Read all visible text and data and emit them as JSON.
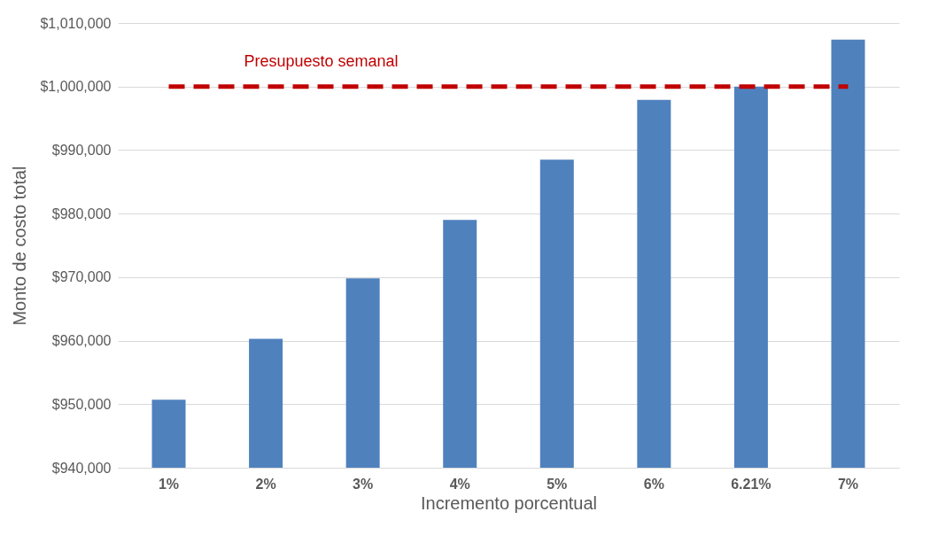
{
  "chart_data": {
    "type": "bar",
    "xlabel": "Incremento porcentual",
    "ylabel": "Monto de costo total",
    "categories": [
      "1%",
      "2%",
      "3%",
      "4%",
      "5%",
      "6%",
      "6.21%",
      "7%"
    ],
    "values": [
      950700,
      960300,
      969800,
      979000,
      988500,
      997900,
      1000000,
      1007400
    ],
    "color": "#4f81bd",
    "ylim": [
      940000,
      1010000
    ],
    "yticks": [
      {
        "value": 940000,
        "label": "$940,000"
      },
      {
        "value": 950000,
        "label": "$950,000"
      },
      {
        "value": 960000,
        "label": "$960,000"
      },
      {
        "value": 970000,
        "label": "$970,000"
      },
      {
        "value": 980000,
        "label": "$980,000"
      },
      {
        "value": 990000,
        "label": "$990,000"
      },
      {
        "value": 1000000,
        "label": "$1,000,000"
      },
      {
        "value": 1010000,
        "label": "$1,010,000"
      }
    ],
    "grid": "y",
    "ref_lines": [
      {
        "axis": "y",
        "value": 1000000,
        "label": "Presupuesto semanal",
        "color": "#c00000",
        "line_style": "dashed"
      }
    ]
  }
}
